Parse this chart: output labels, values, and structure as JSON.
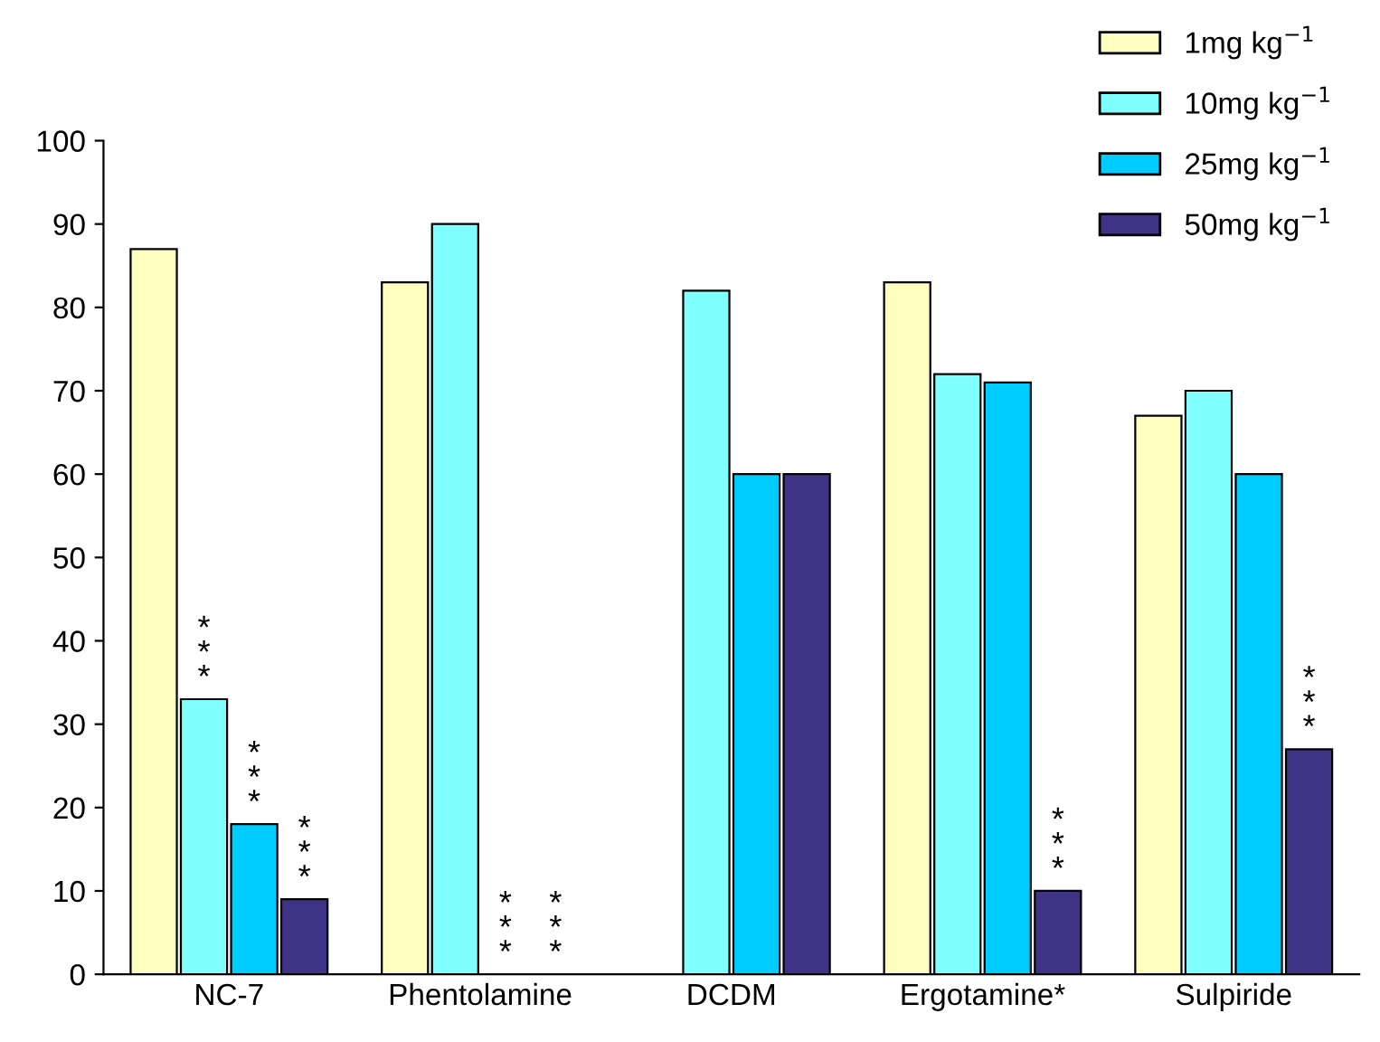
{
  "chart_data": {
    "type": "bar",
    "categories": [
      "NC-7",
      "Phentolamine",
      "DCDM",
      "Ergotamine*",
      "Sulpiride"
    ],
    "series": [
      {
        "name": "1mg kg$^{−1}$",
        "color": "#ffffc0",
        "values": [
          87,
          83,
          null,
          83,
          67
        ]
      },
      {
        "name": "10mg kg$^{−1}$",
        "color": "#80ffff",
        "values": [
          33,
          90,
          82,
          72,
          70
        ]
      },
      {
        "name": "25mg kg$^{−1}$",
        "color": "#00ccff",
        "values": [
          18,
          0,
          60,
          71,
          60
        ]
      },
      {
        "name": "50mg kg$^{−1}$",
        "color": "#3f3385",
        "values": [
          9,
          0,
          60,
          10,
          27
        ]
      }
    ],
    "ylim": [
      0,
      100
    ],
    "yticks": [
      0,
      10,
      20,
      30,
      40,
      50,
      60,
      70,
      80,
      90,
      100
    ],
    "grid": false,
    "legend": "top right",
    "annotations": [
      {
        "text": "***",
        "x": "NC-7",
        "y": 33
      },
      {
        "text": "***",
        "x": "NC-7",
        "y": 18
      },
      {
        "text": "***",
        "x": "NC-7",
        "y": 9
      },
      {
        "text": "***",
        "x": "Phentolamine",
        "y": 0
      },
      {
        "text": "***",
        "x": "Phentolamine",
        "y": 0
      },
      {
        "text": "***",
        "x": "Ergotamine*",
        "y": 10
      },
      {
        "text": "***",
        "x": "Sulpiride",
        "y": 27
      }
    ]
  }
}
